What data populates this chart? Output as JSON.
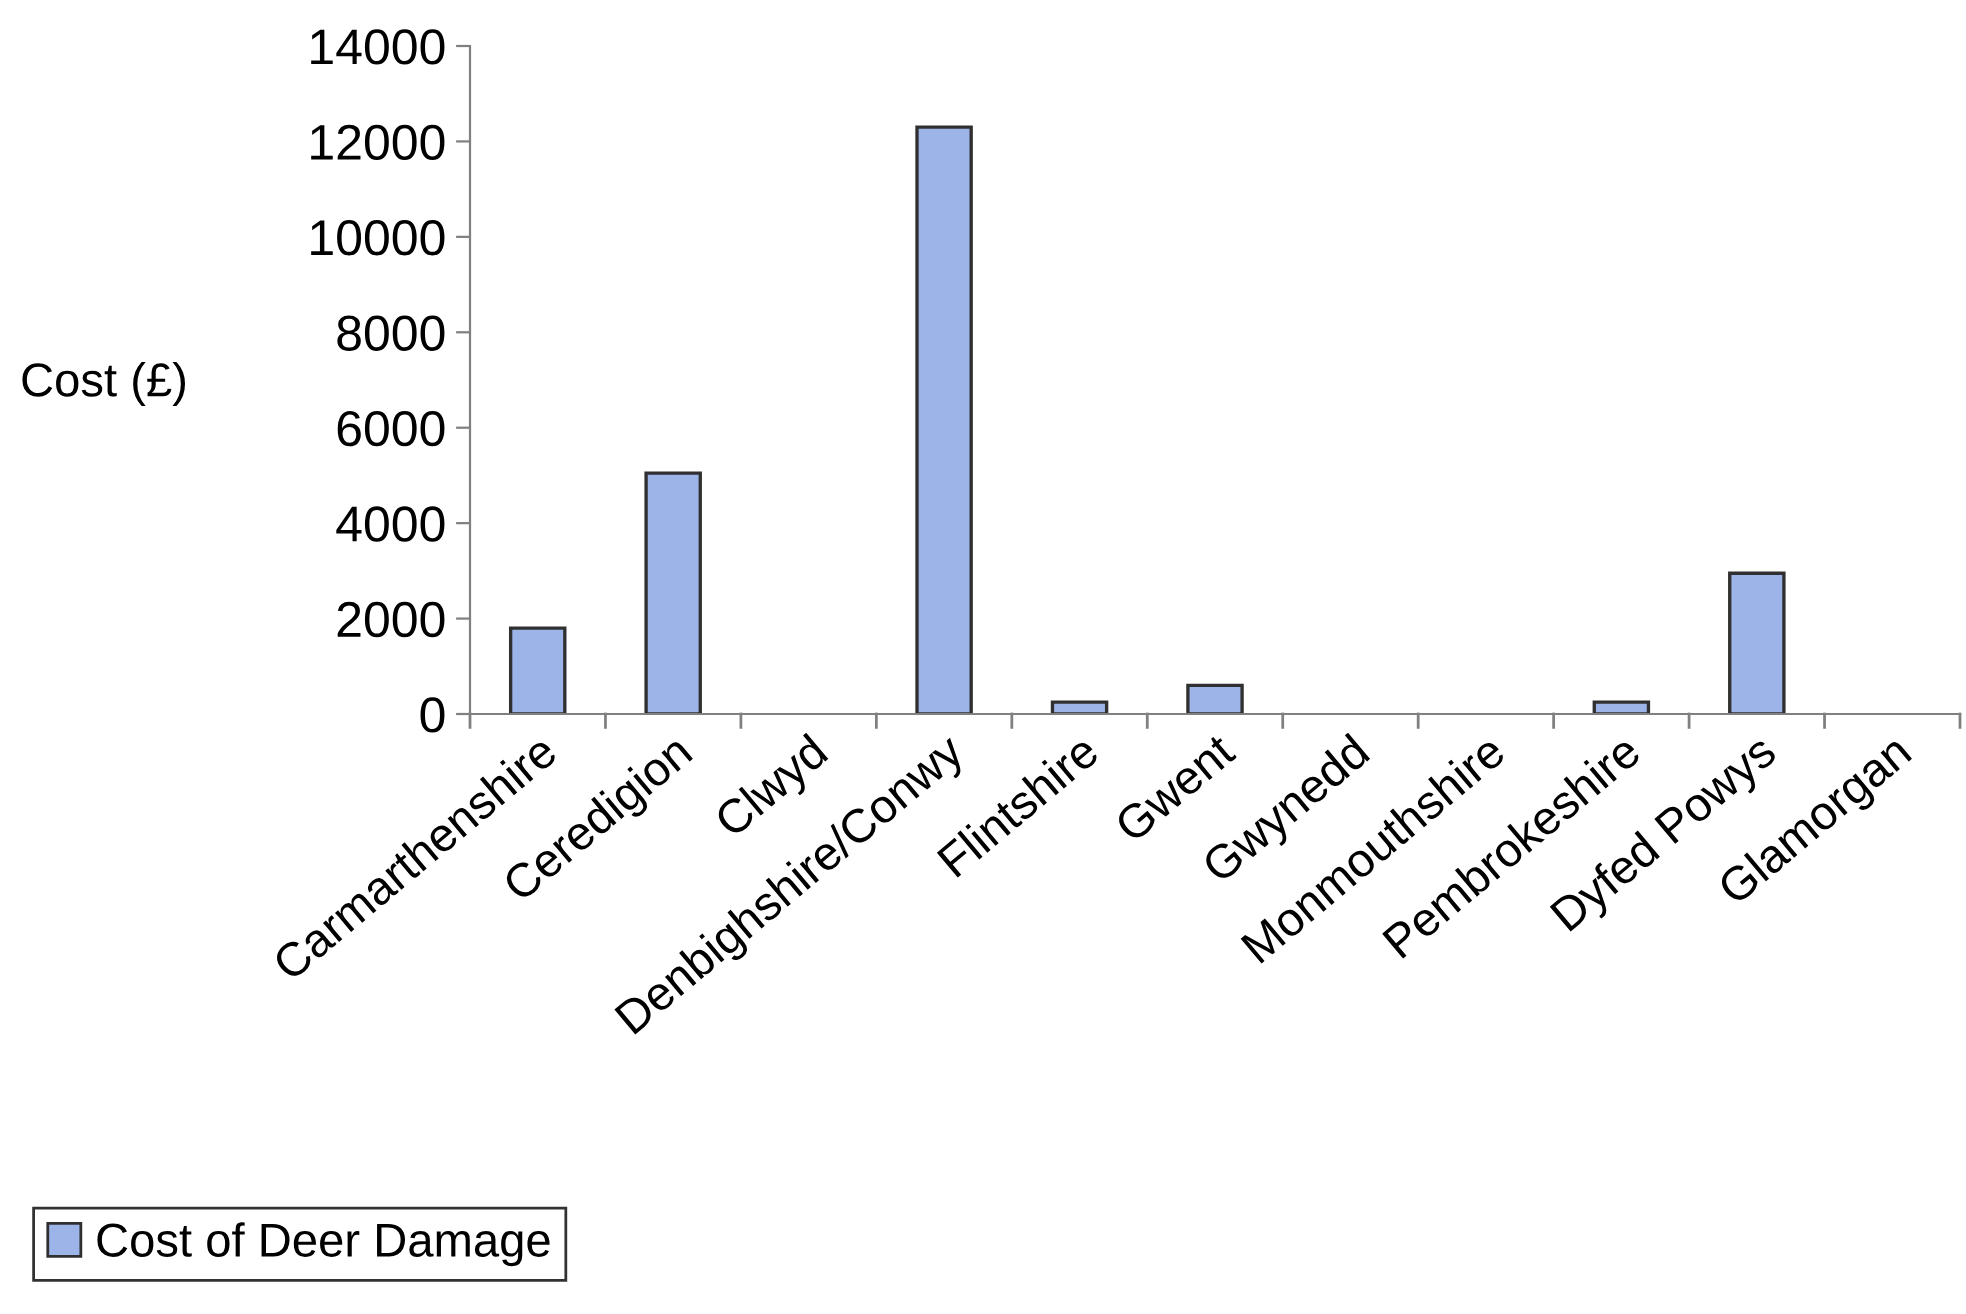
{
  "chart_data": {
    "type": "bar",
    "ylabel": "Cost (£)",
    "categories": [
      "Carmarthenshire",
      "Ceredigion",
      "Clwyd",
      "Denbighshire/Conwy",
      "Flintshire",
      "Gwent",
      "Gwynedd",
      "Monmouthshire",
      "Pembrokeshire",
      "Dyfed Powys",
      "Glamorgan"
    ],
    "series": [
      {
        "name": "Cost of Deer Damage",
        "color": "#9db4e8",
        "values": [
          1800,
          5050,
          0,
          12300,
          250,
          600,
          0,
          0,
          250,
          2950,
          0
        ]
      }
    ],
    "ylim": [
      0,
      14000
    ],
    "yticks": [
      0,
      2000,
      4000,
      6000,
      8000,
      10000,
      12000,
      14000
    ],
    "grid": false,
    "legend": "bottom left"
  }
}
